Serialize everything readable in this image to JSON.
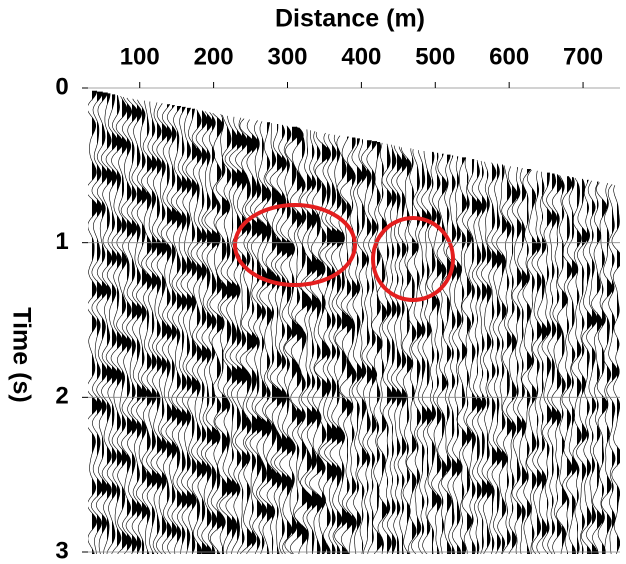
{
  "chart_data": {
    "type": "seismic",
    "x_label": "Distance (m)",
    "y_label": "Time (s)",
    "xlim": [
      30,
      750
    ],
    "xticks": [
      100,
      200,
      300,
      400,
      500,
      600,
      700
    ],
    "ylim": [
      0,
      3
    ],
    "yticks": [
      0,
      1,
      2,
      3
    ],
    "y_inverted": true,
    "grid": true
  }
}
